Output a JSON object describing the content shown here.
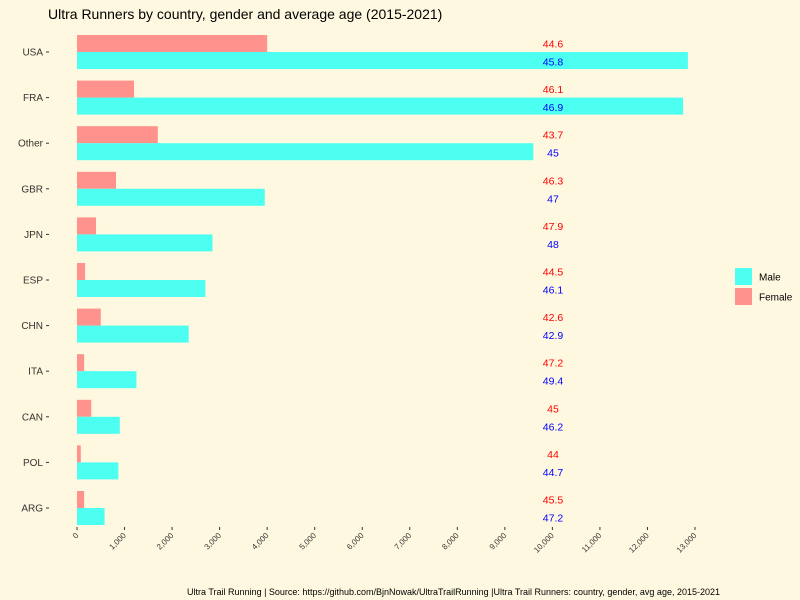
{
  "chart_data": {
    "type": "bar",
    "orientation": "horizontal",
    "title": "Ultra Runners by country, gender and average age (2015-2021)",
    "caption": "Ultra Trail Running | Source: https://github.com/BjnNowak/UltraTrailRunning |Ultra Trail Runners: country, gender, avg age, 2015-2021",
    "categories": [
      "USA",
      "FRA",
      "Other",
      "GBR",
      "JPN",
      "ESP",
      "CHN",
      "ITA",
      "CAN",
      "POL",
      "ARG"
    ],
    "series": [
      {
        "name": "Male",
        "color": "#4DFFF0",
        "label_color": "#0000FF",
        "values": [
          12850,
          12750,
          9600,
          3950,
          2850,
          2700,
          2350,
          1250,
          900,
          870,
          580
        ],
        "avg_age_labels": [
          "45.8",
          "46.9",
          "45",
          "47",
          "48",
          "46.1",
          "42.9",
          "49.4",
          "46.2",
          "44.7",
          "47.2"
        ]
      },
      {
        "name": "Female",
        "color": "#FF928C",
        "label_color": "#FF0000",
        "values": [
          4000,
          1200,
          1700,
          820,
          400,
          170,
          500,
          150,
          300,
          80,
          150
        ],
        "avg_age_labels": [
          "44.6",
          "46.1",
          "43.7",
          "46.3",
          "47.9",
          "44.5",
          "42.6",
          "47.2",
          "45",
          "44",
          "45.5"
        ]
      }
    ],
    "x_ticks": [
      "0",
      "1,000",
      "2,000",
      "3,000",
      "4,000",
      "5,000",
      "6,000",
      "7,000",
      "8,000",
      "9,000",
      "10,000",
      "11,000",
      "12,000",
      "13,000"
    ],
    "x_tick_values": [
      0,
      1000,
      2000,
      3000,
      4000,
      5000,
      6000,
      7000,
      8000,
      9000,
      10000,
      11000,
      12000,
      13000
    ],
    "xlim": [
      0,
      13000
    ],
    "xlabel": "",
    "ylabel": "",
    "grid": false,
    "legend": {
      "position": "right",
      "entries": [
        {
          "label": "Male",
          "color": "#4DFFF0"
        },
        {
          "label": "Female",
          "color": "#FF928C"
        }
      ]
    }
  }
}
